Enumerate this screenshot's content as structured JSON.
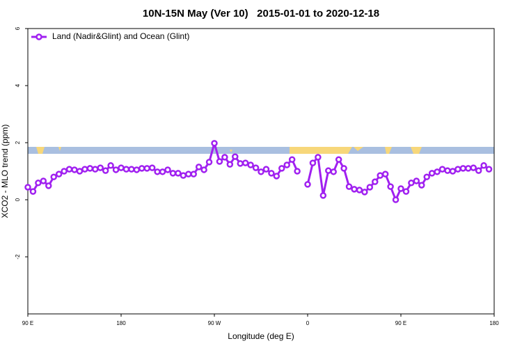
{
  "chart_data": {
    "type": "line",
    "title": "10N-15N May (Ver 10)   2015-01-01 to 2020-12-18",
    "xlabel": "Longitude (deg E)",
    "ylabel": "XCO2 - MLO trend (ppm)",
    "xlim": [
      90,
      540
    ],
    "ylim": [
      -4,
      6
    ],
    "xticks": [
      {
        "value": 90,
        "label": "90 E"
      },
      180,
      {
        "value": 270,
        "label": "90 W"
      },
      {
        "value": 360,
        "label": "0"
      },
      {
        "value": 450,
        "label": "90 E"
      },
      {
        "value": 540,
        "label": "180"
      }
    ],
    "yticks": [
      -2,
      0,
      2,
      4,
      6
    ],
    "x": [
      90,
      95,
      100,
      105,
      110,
      115,
      120,
      125,
      130,
      135,
      140,
      145,
      150,
      155,
      160,
      165,
      170,
      175,
      180,
      185,
      190,
      195,
      200,
      205,
      210,
      215,
      220,
      225,
      230,
      235,
      240,
      245,
      250,
      255,
      260,
      265,
      270,
      275,
      280,
      285,
      290,
      295,
      300,
      305,
      310,
      315,
      320,
      325,
      330,
      335,
      340,
      345,
      350,
      355,
      360,
      365,
      370,
      375,
      380,
      385,
      390,
      395,
      400,
      405,
      410,
      415,
      420,
      425,
      430,
      435,
      440,
      445,
      450,
      455,
      460,
      465,
      470,
      475,
      480,
      485,
      490,
      495,
      500,
      505,
      510,
      515,
      520,
      525,
      530,
      535
    ],
    "series": [
      {
        "name": "Land (Nadir&Glint) and Ocean (Glint)",
        "color": "#a020f0",
        "values": [
          0.44,
          0.29,
          0.59,
          0.66,
          0.49,
          0.8,
          0.9,
          1.0,
          1.07,
          1.05,
          1.0,
          1.07,
          1.1,
          1.07,
          1.12,
          1.02,
          1.2,
          1.05,
          1.12,
          1.07,
          1.07,
          1.05,
          1.1,
          1.1,
          1.12,
          0.98,
          0.98,
          1.05,
          0.93,
          0.93,
          0.85,
          0.9,
          0.9,
          1.15,
          1.05,
          1.32,
          1.98,
          1.34,
          1.49,
          1.24,
          1.51,
          1.27,
          1.29,
          1.22,
          1.12,
          0.98,
          1.07,
          0.93,
          0.83,
          1.1,
          1.22,
          1.41,
          1.0,
          null,
          0.54,
          1.29,
          1.49,
          0.15,
          1.02,
          0.98,
          1.41,
          1.1,
          0.46,
          0.37,
          0.34,
          0.27,
          0.44,
          0.63,
          0.85,
          0.9,
          0.46,
          0.0,
          0.39,
          0.29,
          0.59,
          0.66,
          0.51,
          0.8,
          0.93,
          0.98,
          1.07,
          1.02,
          1.0,
          1.07,
          1.1,
          1.1,
          1.12,
          1.02,
          1.2,
          1.07
        ]
      }
    ],
    "legend": "top-left"
  }
}
